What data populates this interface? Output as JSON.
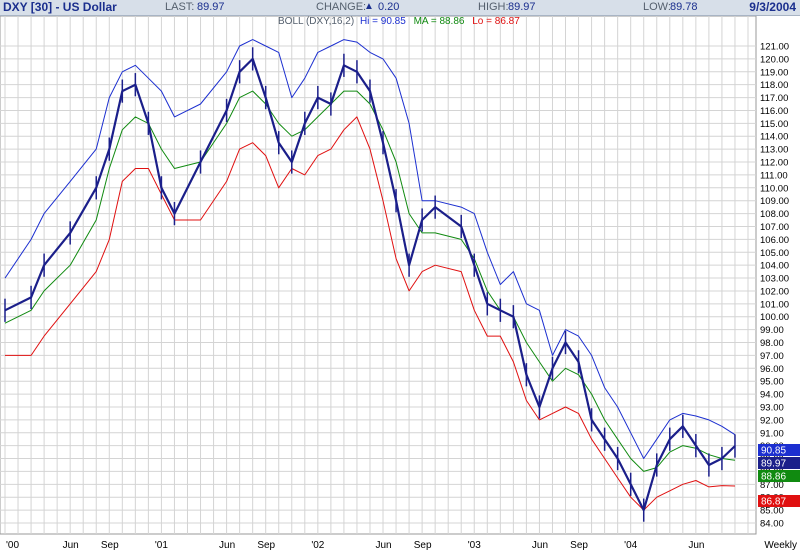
{
  "header": {
    "title": "DXY [30] - US Dollar",
    "last_label": "LAST:",
    "last_value": "89.97",
    "change_label": "CHANGE:",
    "change_arrow": "▲",
    "change_value": "0.20",
    "high_label": "HIGH:",
    "high_value": "89.97",
    "low_label": "LOW:",
    "low_value": "89.78",
    "date": "9/3/2004"
  },
  "legend": {
    "prefix": "BOLL (DXY,16,2)",
    "hi_label": "Hi = 90.85",
    "ma_label": "MA = 88.86",
    "lo_label": "Lo = 86.87"
  },
  "price_tags": [
    {
      "text": "90.85",
      "value": 90.85,
      "color": "#1c2fd0"
    },
    {
      "text": "89.97",
      "value": 89.97,
      "color": "#1b1f8a"
    },
    {
      "text": "88.86",
      "value": 88.86,
      "color": "#108a10"
    },
    {
      "text": "86.87",
      "value": 86.87,
      "color": "#e01010"
    }
  ],
  "colors": {
    "price": "#1b1f8a",
    "upper_band": "#1c2fd0",
    "middle_band": "#108a10",
    "lower_band": "#e01010",
    "grid": "#d4d4d4",
    "header_bg": "#d7dfe9"
  },
  "chart_data": {
    "type": "line",
    "title": "DXY [30] - US Dollar",
    "xlabel": "",
    "ylabel": "",
    "frequency": "Weekly",
    "ylim": [
      84,
      121
    ],
    "y_ticks": [
      "121.00",
      "120.00",
      "119.00",
      "118.00",
      "117.00",
      "116.00",
      "115.00",
      "114.00",
      "113.00",
      "112.00",
      "111.00",
      "110.00",
      "109.00",
      "108.00",
      "107.00",
      "106.00",
      "105.00",
      "104.00",
      "103.00",
      "102.00",
      "101.00",
      "100.00",
      "99.00",
      "98.00",
      "97.00",
      "96.00",
      "95.00",
      "94.00",
      "93.00",
      "92.00",
      "91.00",
      "90.00",
      "89.00",
      "88.00",
      "87.00",
      "86.00",
      "85.00",
      "84.00"
    ],
    "x_ticks": [
      "'00",
      "Jun",
      "Sep",
      "'01",
      "Jun",
      "Sep",
      "'02",
      "Jun",
      "Sep",
      "'03",
      "Jun",
      "Sep",
      "'04",
      "Jun",
      "Weekly"
    ],
    "grid": true,
    "legend_position": "top",
    "x": [
      "2000-01",
      "2000-03",
      "2000-04",
      "2000-06",
      "2000-08",
      "2000-09",
      "2000-10",
      "2000-11",
      "2000-12",
      "2001-01",
      "2001-02",
      "2001-04",
      "2001-06",
      "2001-07",
      "2001-08",
      "2001-09",
      "2001-10",
      "2001-11",
      "2001-12",
      "2002-01",
      "2002-02",
      "2002-03",
      "2002-04",
      "2002-05",
      "2002-06",
      "2002-07",
      "2002-08",
      "2002-09",
      "2002-10",
      "2002-12",
      "2003-01",
      "2003-02",
      "2003-03",
      "2003-04",
      "2003-05",
      "2003-06",
      "2003-07",
      "2003-08",
      "2003-09",
      "2003-10",
      "2003-11",
      "2003-12",
      "2004-01",
      "2004-02",
      "2004-03",
      "2004-04",
      "2004-05",
      "2004-06",
      "2004-07",
      "2004-08",
      "2004-09"
    ],
    "series": [
      {
        "name": "DXY",
        "values": [
          100.5,
          101.5,
          104.0,
          106.5,
          110.0,
          113.0,
          117.5,
          118.0,
          115.0,
          110.0,
          108.0,
          112.0,
          116.0,
          119.0,
          120.0,
          117.0,
          113.5,
          112.0,
          115.0,
          117.0,
          116.5,
          119.5,
          119.0,
          117.5,
          113.5,
          109.0,
          104.0,
          107.5,
          108.5,
          107.0,
          104.0,
          101.0,
          100.5,
          100.0,
          95.5,
          93.0,
          96.0,
          98.0,
          96.5,
          92.0,
          90.5,
          89.0,
          87.0,
          85.0,
          88.5,
          90.5,
          91.5,
          90.0,
          88.5,
          89.0,
          89.97
        ]
      },
      {
        "name": "Hi",
        "values": [
          103.0,
          106.0,
          108.0,
          110.5,
          113.0,
          117.0,
          119.0,
          119.5,
          118.5,
          117.5,
          115.5,
          116.5,
          119.0,
          121.0,
          121.5,
          121.0,
          120.5,
          117.0,
          118.5,
          120.5,
          121.0,
          121.5,
          121.3,
          120.5,
          120.0,
          118.5,
          115.0,
          109.0,
          109.0,
          108.5,
          108.0,
          105.0,
          102.5,
          103.5,
          101.0,
          100.5,
          97.0,
          99.0,
          98.5,
          97.0,
          94.5,
          93.0,
          91.0,
          89.0,
          90.5,
          92.0,
          92.5,
          92.3,
          92.0,
          91.5,
          90.85
        ]
      },
      {
        "name": "MA",
        "values": [
          99.5,
          100.5,
          102.0,
          104.0,
          107.5,
          111.5,
          114.5,
          115.5,
          115.0,
          113.0,
          111.5,
          112.0,
          115.0,
          117.0,
          117.5,
          116.5,
          115.0,
          114.0,
          114.5,
          115.5,
          116.5,
          117.5,
          117.5,
          116.5,
          114.5,
          112.0,
          108.0,
          106.5,
          106.5,
          106.0,
          104.5,
          102.0,
          100.5,
          100.0,
          98.0,
          96.5,
          95.0,
          96.0,
          95.5,
          94.0,
          92.0,
          90.5,
          89.0,
          88.0,
          88.3,
          89.5,
          90.0,
          89.8,
          89.3,
          89.0,
          88.86
        ]
      },
      {
        "name": "Lo",
        "values": [
          97.0,
          97.0,
          98.5,
          101.0,
          103.5,
          106.0,
          110.5,
          111.5,
          111.5,
          109.5,
          107.5,
          107.5,
          110.5,
          113.0,
          113.5,
          112.5,
          110.0,
          111.5,
          111.0,
          112.5,
          113.0,
          114.5,
          115.5,
          113.0,
          109.0,
          104.5,
          102.0,
          103.5,
          104.0,
          103.5,
          100.5,
          98.5,
          98.5,
          96.5,
          93.5,
          92.0,
          92.5,
          93.0,
          92.5,
          90.5,
          89.0,
          87.5,
          86.0,
          85.0,
          86.0,
          86.5,
          87.0,
          87.3,
          86.8,
          86.9,
          86.87
        ]
      }
    ]
  }
}
